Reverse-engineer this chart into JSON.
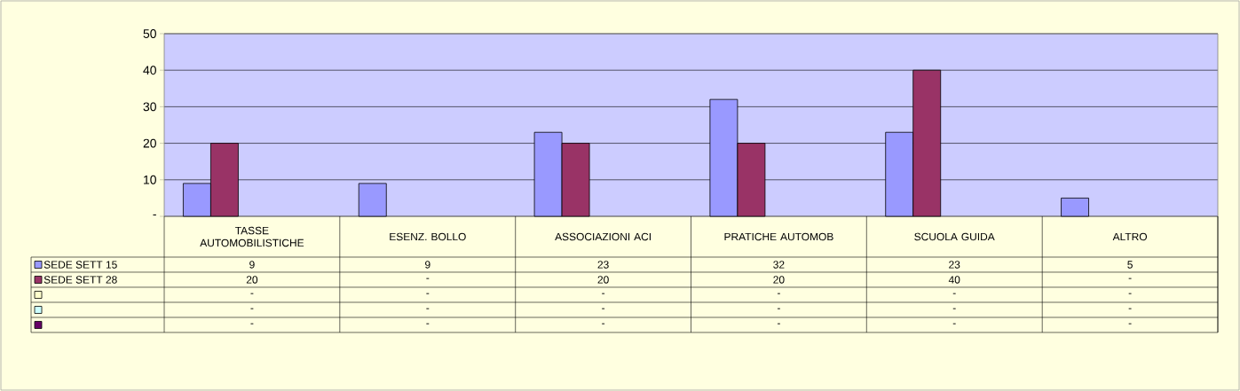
{
  "chart_data": {
    "type": "bar",
    "categories": [
      "TASSE AUTOMOBILISTICHE",
      "ESENZ. BOLLO",
      "ASSOCIAZIONI ACI",
      "PRATICHE AUTOMOB",
      "SCUOLA GUIDA",
      "ALTRO"
    ],
    "series": [
      {
        "name": "SEDE SETT 15",
        "color": "#9999ff",
        "values": [
          9,
          9,
          23,
          32,
          23,
          5
        ],
        "value_labels": [
          "9",
          "9",
          "23",
          "32",
          "23",
          "5"
        ]
      },
      {
        "name": "SEDE SETT 28",
        "color": "#993366",
        "values": [
          20,
          null,
          20,
          20,
          40,
          null
        ],
        "value_labels": [
          "20",
          "-",
          "20",
          "20",
          "40",
          "-"
        ]
      },
      {
        "color": "#ffffcc",
        "values": [
          null,
          null,
          null,
          null,
          null,
          null
        ],
        "value_labels": [
          "-",
          "-",
          "-",
          "-",
          "-",
          "-"
        ]
      },
      {
        "color": "#ccffff",
        "values": [
          null,
          null,
          null,
          null,
          null,
          null
        ],
        "value_labels": [
          "-",
          "-",
          "-",
          "-",
          "-",
          "-"
        ]
      },
      {
        "color": "#660066",
        "values": [
          null,
          null,
          null,
          null,
          null,
          null
        ],
        "value_labels": [
          "-",
          "-",
          "-",
          "-",
          "-",
          "-"
        ]
      }
    ],
    "ylim": [
      0,
      50
    ],
    "yticks": [
      {
        "value": 0,
        "label": "-"
      },
      10,
      20,
      30,
      40,
      50
    ],
    "grid": "y",
    "legend": "bottom left"
  }
}
